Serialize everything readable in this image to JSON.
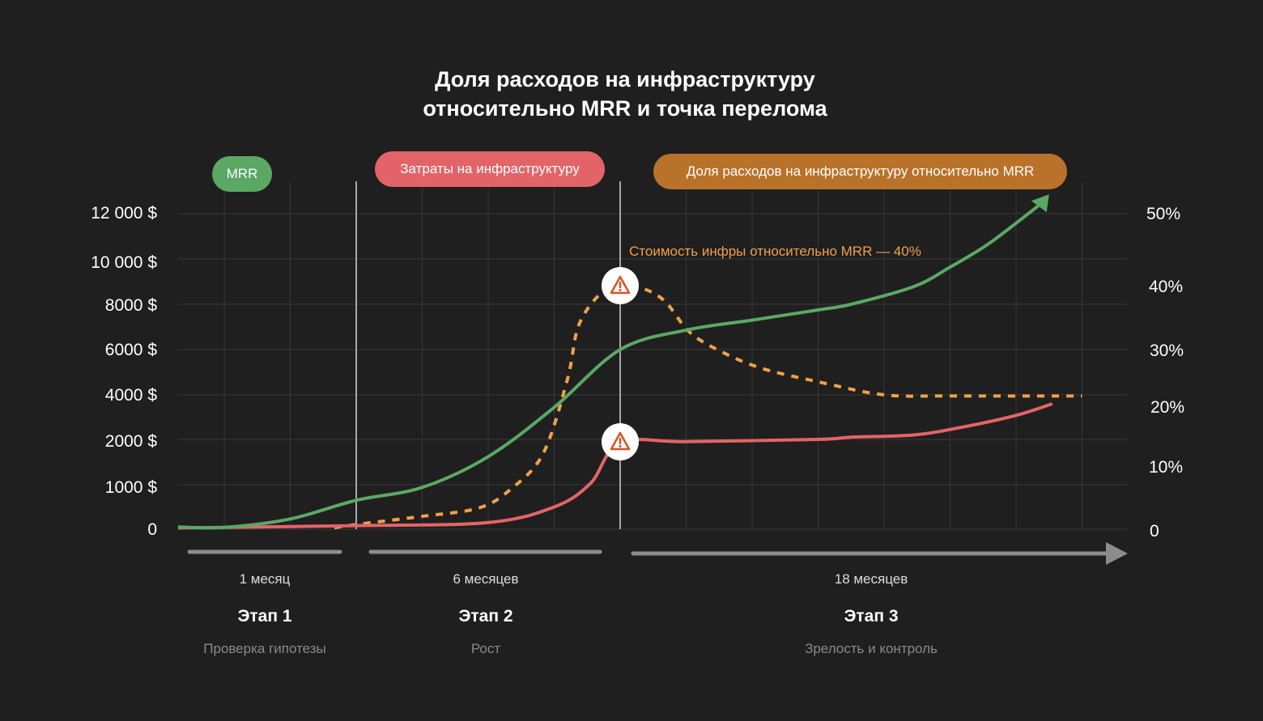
{
  "title_lines": [
    "Доля расходов на инфраструктуру",
    "относительно MRR и точка перелома"
  ],
  "colors": {
    "background": "#1f1f1f",
    "mrr": "#5aa864",
    "infra": "#e36468",
    "ratio": "#f0a04b",
    "ratio_pill": "#b9722a",
    "warning": "#d9531e"
  },
  "chart_data": {
    "type": "line",
    "title": "Доля расходов на инфраструктуру относительно MRR и точка перелома",
    "legend": [
      "MRR",
      "Затраты на инфраструктуру",
      "Доля расходов на инфраструктуру относительно MRR"
    ],
    "legend_placement": "top",
    "grid": true,
    "y_left": {
      "ticks": [
        "12 000 $",
        "10 000 $",
        "8000 $",
        "6000 $",
        "4000 $",
        "2000 $",
        "1000 $",
        "0"
      ],
      "tick_values": [
        12000,
        10000,
        8000,
        6000,
        4000,
        2000,
        1000,
        0
      ]
    },
    "y_right": {
      "ticks": [
        "50%",
        "40%",
        "30%",
        "20%",
        "10%",
        "0"
      ],
      "tick_values": [
        50,
        40,
        30,
        20,
        10,
        0
      ]
    },
    "series": [
      {
        "name": "MRR",
        "axis": "left",
        "arrow": true,
        "points": [
          [
            -0.7,
            50
          ],
          [
            0,
            40
          ],
          [
            1,
            230
          ],
          [
            2,
            650
          ],
          [
            3,
            940
          ],
          [
            4,
            1620
          ],
          [
            5,
            3440
          ],
          [
            6,
            6000
          ],
          [
            7,
            6860
          ],
          [
            8,
            7300
          ],
          [
            9,
            7750
          ],
          [
            9.5,
            8000
          ],
          [
            10.45,
            8780
          ],
          [
            11,
            9640
          ],
          [
            11.6,
            10700
          ],
          [
            12.5,
            12850
          ]
        ]
      },
      {
        "name": "Затраты на инфраструктуру",
        "axis": "left",
        "points": [
          [
            -0.7,
            30
          ],
          [
            2,
            80
          ],
          [
            4,
            150
          ],
          [
            5,
            500
          ],
          [
            5.55,
            1030
          ],
          [
            6,
            1930
          ],
          [
            7,
            1950
          ],
          [
            9,
            2000
          ],
          [
            9.5,
            2100
          ],
          [
            10.45,
            2200
          ],
          [
            11.2,
            2560
          ],
          [
            12,
            3080
          ],
          [
            12.55,
            3600
          ]
        ]
      },
      {
        "name": "Доля расходов на инфраструктуру относительно MRR",
        "axis": "right",
        "dashed": true,
        "points": [
          [
            1.67,
            0.5
          ],
          [
            2,
            1
          ],
          [
            3,
            2.3
          ],
          [
            3.85,
            3.6
          ],
          [
            4.33,
            6.5
          ],
          [
            4.83,
            12.3
          ],
          [
            5.2,
            25
          ],
          [
            5.37,
            34
          ],
          [
            5.7,
            39
          ],
          [
            6,
            40.4
          ],
          [
            6.3,
            40
          ],
          [
            6.67,
            37.9
          ],
          [
            7.05,
            33
          ],
          [
            7.52,
            30
          ],
          [
            8.14,
            27
          ],
          [
            9,
            24.6
          ],
          [
            10,
            22.3
          ],
          [
            11,
            22.1
          ],
          [
            13,
            22.1
          ]
        ]
      }
    ],
    "annotations": [
      {
        "text": "Стоимость инфры относительно MRR — 40%"
      }
    ],
    "warnings": [
      {
        "x": 6,
        "series": "ratio",
        "value": 40
      },
      {
        "x": 6,
        "series": "infra",
        "value": 2000
      }
    ]
  },
  "stages": [
    {
      "duration": "1 месяц",
      "name": "Этап 1",
      "desc": "Проверка гипотезы"
    },
    {
      "duration": "6 месяцев",
      "name": "Этап 2",
      "desc": "Рост"
    },
    {
      "duration": "18 месяцев",
      "name": "Этап 3",
      "desc": "Зрелость и контроль"
    }
  ]
}
